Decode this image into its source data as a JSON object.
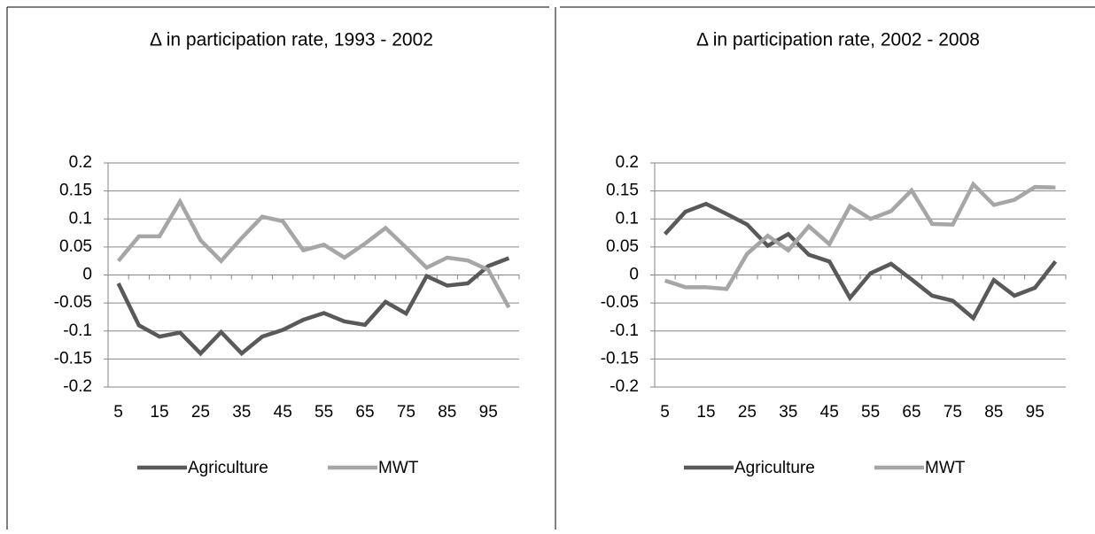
{
  "chart_data": [
    {
      "type": "line",
      "title": "Δ in participation rate, 1993 - 2002",
      "categories": [
        "5",
        null,
        "15",
        null,
        "25",
        null,
        "35",
        null,
        "45",
        null,
        "55",
        null,
        "65",
        null,
        "75",
        null,
        "85",
        null,
        "95",
        null
      ],
      "series": [
        {
          "name": "Agriculture",
          "color": "#595959",
          "values": [
            -0.015,
            -0.09,
            -0.11,
            -0.103,
            -0.14,
            -0.102,
            -0.14,
            -0.11,
            -0.098,
            -0.08,
            -0.068,
            -0.083,
            -0.089,
            -0.048,
            -0.069,
            -0.002,
            -0.019,
            -0.015,
            0.016,
            0.03
          ]
        },
        {
          "name": "MWT",
          "color": "#a6a6a6",
          "values": [
            0.025,
            0.069,
            0.069,
            0.131,
            0.062,
            0.025,
            0.066,
            0.104,
            0.096,
            0.044,
            0.054,
            0.031,
            0.056,
            0.084,
            0.049,
            0.013,
            0.031,
            0.026,
            0.009,
            -0.058
          ]
        }
      ],
      "ylim": [
        -0.2,
        0.2
      ],
      "yticks": [
        0.2,
        0.15,
        0.1,
        0.05,
        0,
        -0.05,
        -0.1,
        -0.15,
        -0.2
      ],
      "grid": true,
      "legend": "bottom"
    },
    {
      "type": "line",
      "title": "Δ in participation rate, 2002 - 2008",
      "categories": [
        "5",
        null,
        "15",
        null,
        "25",
        null,
        "35",
        null,
        "45",
        null,
        "55",
        null,
        "65",
        null,
        "75",
        null,
        "85",
        null,
        "95",
        null
      ],
      "series": [
        {
          "name": "Agriculture",
          "color": "#595959",
          "values": [
            0.073,
            0.113,
            0.127,
            0.109,
            0.09,
            0.052,
            0.073,
            0.036,
            0.024,
            -0.041,
            0.003,
            0.02,
            -0.008,
            -0.037,
            -0.046,
            -0.077,
            -0.009,
            -0.037,
            -0.023,
            0.024
          ]
        },
        {
          "name": "MWT",
          "color": "#a6a6a6",
          "values": [
            -0.01,
            -0.022,
            -0.022,
            -0.025,
            0.038,
            0.07,
            0.044,
            0.087,
            0.055,
            0.123,
            0.1,
            0.114,
            0.151,
            0.091,
            0.09,
            0.162,
            0.125,
            0.134,
            0.157,
            0.156
          ]
        }
      ],
      "ylim": [
        -0.2,
        0.2
      ],
      "yticks": [
        0.2,
        0.15,
        0.1,
        0.05,
        0,
        -0.05,
        -0.1,
        -0.15,
        -0.2
      ],
      "grid": true,
      "legend": "bottom"
    }
  ]
}
